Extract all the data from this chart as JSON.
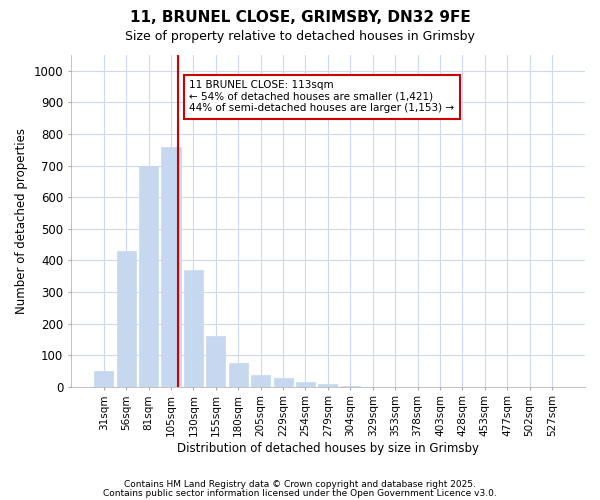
{
  "title1": "11, BRUNEL CLOSE, GRIMSBY, DN32 9FE",
  "title2": "Size of property relative to detached houses in Grimsby",
  "xlabel": "Distribution of detached houses by size in Grimsby",
  "ylabel": "Number of detached properties",
  "bar_color": "#c5d8f0",
  "bar_edge_color": "#c5d8f0",
  "background_color": "#ffffff",
  "grid_color": "#ccd9f0",
  "categories": [
    "31sqm",
    "56sqm",
    "81sqm",
    "105sqm",
    "130sqm",
    "155sqm",
    "180sqm",
    "205sqm",
    "229sqm",
    "254sqm",
    "279sqm",
    "304sqm",
    "329sqm",
    "353sqm",
    "378sqm",
    "403sqm",
    "428sqm",
    "453sqm",
    "477sqm",
    "502sqm",
    "527sqm"
  ],
  "values": [
    50,
    430,
    700,
    760,
    370,
    160,
    75,
    38,
    28,
    15,
    10,
    3,
    0,
    0,
    0,
    0,
    0,
    0,
    0,
    0,
    0
  ],
  "red_line_x": 3.32,
  "annotation_text": "11 BRUNEL CLOSE: 113sqm\n← 54% of detached houses are smaller (1,421)\n44% of semi-detached houses are larger (1,153) →",
  "annotation_box_color": "#ffffff",
  "annotation_border_color": "#cc0000",
  "ylim": [
    0,
    1050
  ],
  "yticks": [
    0,
    100,
    200,
    300,
    400,
    500,
    600,
    700,
    800,
    900,
    1000
  ],
  "footnote1": "Contains HM Land Registry data © Crown copyright and database right 2025.",
  "footnote2": "Contains public sector information licensed under the Open Government Licence v3.0."
}
